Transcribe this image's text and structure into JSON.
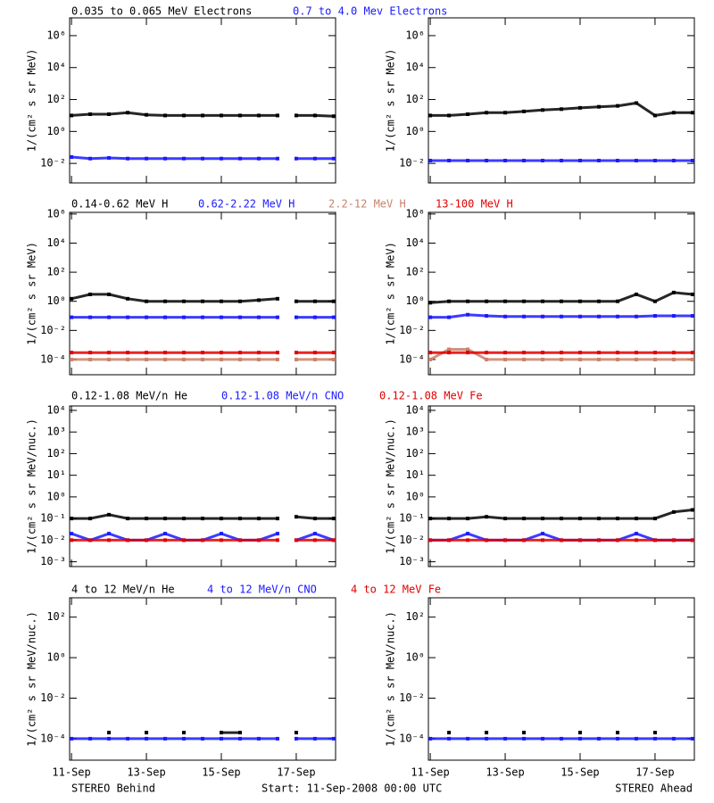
{
  "chart_data": [
    {
      "type": "scatter",
      "ylabel": "1/(cm² s sr MeV)",
      "ylog": true,
      "xlim": [
        10.95,
        18.05
      ],
      "xticks": [
        11,
        13,
        15,
        17
      ],
      "ylim": [
        0.0006,
        13000000
      ],
      "yticks": [
        {
          "value": 1000000,
          "label": "10⁶"
        },
        {
          "value": 10000,
          "label": "10⁴"
        },
        {
          "value": 100,
          "label": "10²"
        },
        {
          "value": 1,
          "label": "10⁰"
        },
        {
          "value": 0.01,
          "label": "10⁻²"
        }
      ],
      "x": [
        11,
        11.5,
        12,
        12.5,
        13,
        13.5,
        14,
        14.5,
        15,
        15.5,
        16,
        16.5,
        16.8,
        17,
        17.5,
        18
      ],
      "series": [
        {
          "name": "0.035 to 0.065 MeV Electrons",
          "color": "#000000",
          "values": [
            10,
            12,
            12,
            15,
            11,
            10,
            10,
            10,
            10,
            10,
            10,
            10,
            null,
            10,
            10,
            9
          ]
        },
        {
          "name": "0.7 to 4.0 Mev Electrons",
          "color": "#1a1aff",
          "values": [
            0.025,
            0.02,
            0.022,
            0.02,
            0.02,
            0.02,
            0.02,
            0.02,
            0.02,
            0.02,
            0.02,
            0.02,
            null,
            0.02,
            0.02,
            0.02
          ]
        }
      ]
    },
    {
      "type": "scatter",
      "ylabel": "1/(cm² s sr MeV)",
      "ylog": true,
      "xlim": [
        10.95,
        18.05
      ],
      "xticks": [
        11,
        13,
        15,
        17
      ],
      "ylim": [
        0.0006,
        13000000
      ],
      "yticks": [
        {
          "value": 1000000,
          "label": "10⁶"
        },
        {
          "value": 10000,
          "label": "10⁴"
        },
        {
          "value": 100,
          "label": "10²"
        },
        {
          "value": 1,
          "label": "10⁰"
        },
        {
          "value": 0.01,
          "label": "10⁻²"
        }
      ],
      "x": [
        11,
        11.5,
        12,
        12.5,
        13,
        13.5,
        14,
        14.5,
        15,
        15.5,
        16,
        16.5,
        17,
        17.5,
        18
      ],
      "series": [
        {
          "color": "#000000",
          "values": [
            10,
            10,
            12,
            15,
            15,
            18,
            22,
            25,
            30,
            35,
            40,
            60,
            10,
            15,
            15
          ]
        },
        {
          "color": "#1a1aff",
          "values": [
            0.015,
            0.015,
            0.015,
            0.015,
            0.015,
            0.015,
            0.015,
            0.015,
            0.015,
            0.015,
            0.015,
            0.015,
            0.015,
            0.015,
            0.015
          ]
        }
      ]
    },
    {
      "type": "scatter",
      "ylabel": "1/(cm² s sr MeV)",
      "ylog": true,
      "xlim": [
        10.95,
        18.05
      ],
      "xticks": [
        11,
        13,
        15,
        17
      ],
      "ylim": [
        9e-06,
        1300000
      ],
      "yticks": [
        {
          "value": 1000000,
          "label": "10⁶"
        },
        {
          "value": 10000,
          "label": "10⁴"
        },
        {
          "value": 100,
          "label": "10²"
        },
        {
          "value": 1,
          "label": "10⁰"
        },
        {
          "value": 0.01,
          "label": "10⁻²"
        },
        {
          "value": 0.0001,
          "label": "10⁻⁴"
        }
      ],
      "x": [
        11,
        11.5,
        12,
        12.5,
        13,
        13.5,
        14,
        14.5,
        15,
        15.5,
        16,
        16.5,
        16.8,
        17,
        17.5,
        18
      ],
      "series": [
        {
          "name": "0.14-0.62 MeV H",
          "color": "#000000",
          "values": [
            1.5,
            3,
            3,
            1.5,
            1,
            1,
            1,
            1,
            1,
            1,
            1.2,
            1.5,
            null,
            1,
            1,
            1
          ]
        },
        {
          "name": "0.62-2.22 MeV H",
          "color": "#1a1aff",
          "values": [
            0.08,
            0.08,
            0.08,
            0.08,
            0.08,
            0.08,
            0.08,
            0.08,
            0.08,
            0.08,
            0.08,
            0.08,
            null,
            0.08,
            0.08,
            0.08
          ]
        },
        {
          "name": "2.2-12 MeV H",
          "color": "#c8826a",
          "values": [
            0.0001,
            0.0001,
            0.0001,
            0.0001,
            0.0001,
            0.0001,
            0.0001,
            0.0001,
            0.0001,
            0.0001,
            0.0001,
            0.0001,
            null,
            0.0001,
            0.0001,
            0.0001
          ]
        },
        {
          "name": "13-100 MeV H",
          "color": "#e00000",
          "values": [
            0.0003,
            0.0003,
            0.0003,
            0.0003,
            0.0003,
            0.0003,
            0.0003,
            0.0003,
            0.0003,
            0.0003,
            0.0003,
            0.0003,
            null,
            0.0003,
            0.0003,
            0.0003
          ]
        }
      ]
    },
    {
      "type": "scatter",
      "ylabel": "1/(cm² s sr MeV)",
      "ylog": true,
      "xlim": [
        10.95,
        18.05
      ],
      "xticks": [
        11,
        13,
        15,
        17
      ],
      "ylim": [
        9e-06,
        1300000
      ],
      "yticks": [
        {
          "value": 1000000,
          "label": "10⁶"
        },
        {
          "value": 10000,
          "label": "10⁴"
        },
        {
          "value": 100,
          "label": "10²"
        },
        {
          "value": 1,
          "label": "10⁰"
        },
        {
          "value": 0.01,
          "label": "10⁻²"
        },
        {
          "value": 0.0001,
          "label": "10⁻⁴"
        }
      ],
      "x": [
        11,
        11.5,
        12,
        12.5,
        13,
        13.5,
        14,
        14.5,
        15,
        15.5,
        16,
        16.5,
        17,
        17.5,
        18
      ],
      "series": [
        {
          "color": "#000000",
          "values": [
            0.8,
            1,
            1,
            1,
            1,
            1,
            1,
            1,
            1,
            1,
            1,
            3,
            1,
            4,
            3
          ]
        },
        {
          "color": "#1a1aff",
          "values": [
            0.08,
            0.08,
            0.12,
            0.1,
            0.09,
            0.09,
            0.09,
            0.09,
            0.09,
            0.09,
            0.09,
            0.09,
            0.1,
            0.1,
            0.1
          ]
        },
        {
          "color": "#c8826a",
          "values": [
            0.0001,
            0.0005,
            0.0005,
            0.0001,
            0.0001,
            0.0001,
            0.0001,
            0.0001,
            0.0001,
            0.0001,
            0.0001,
            0.0001,
            0.0001,
            0.0001,
            0.0001
          ]
        },
        {
          "color": "#e00000",
          "values": [
            0.0003,
            0.0003,
            0.0003,
            0.0003,
            0.0003,
            0.0003,
            0.0003,
            0.0003,
            0.0003,
            0.0003,
            0.0003,
            0.0003,
            0.0003,
            0.0003,
            0.0003
          ]
        }
      ]
    },
    {
      "type": "scatter",
      "ylabel": "1/(cm² s sr MeV/nuc.)",
      "ylog": true,
      "xlim": [
        10.95,
        18.05
      ],
      "xticks": [
        11,
        13,
        15,
        17
      ],
      "ylim": [
        0.0006,
        16000
      ],
      "yticks": [
        {
          "value": 10000,
          "label": "10⁴"
        },
        {
          "value": 1000,
          "label": "10³"
        },
        {
          "value": 100,
          "label": "10²"
        },
        {
          "value": 10,
          "label": "10¹"
        },
        {
          "value": 1,
          "label": "10⁰"
        },
        {
          "value": 0.1,
          "label": "10⁻¹"
        },
        {
          "value": 0.01,
          "label": "10⁻²"
        },
        {
          "value": 0.001,
          "label": "10⁻³"
        }
      ],
      "x": [
        11,
        11.5,
        12,
        12.5,
        13,
        13.5,
        14,
        14.5,
        15,
        15.5,
        16,
        16.5,
        16.8,
        17,
        17.5,
        18
      ],
      "series": [
        {
          "name": "0.12-1.08 MeV/n He",
          "color": "#000000",
          "values": [
            0.1,
            0.1,
            0.15,
            0.1,
            0.1,
            0.1,
            0.1,
            0.1,
            0.1,
            0.1,
            0.1,
            0.1,
            null,
            0.12,
            0.1,
            0.1
          ]
        },
        {
          "name": "0.12-1.08 MeV/n CNO",
          "color": "#1a1aff",
          "values": [
            0.02,
            0.01,
            0.02,
            0.01,
            0.01,
            0.02,
            0.01,
            0.01,
            0.02,
            0.01,
            0.01,
            0.02,
            null,
            0.01,
            0.02,
            0.01
          ]
        },
        {
          "name": "0.12-1.08 MeV Fe",
          "color": "#e00000",
          "values": [
            0.01,
            0.01,
            0.01,
            0.01,
            0.01,
            0.01,
            0.01,
            0.01,
            0.01,
            0.01,
            0.01,
            0.01,
            null,
            0.01,
            0.01,
            0.01
          ]
        }
      ]
    },
    {
      "type": "scatter",
      "ylabel": "1/(cm² s sr MeV/nuc.)",
      "ylog": true,
      "xlim": [
        10.95,
        18.05
      ],
      "xticks": [
        11,
        13,
        15,
        17
      ],
      "ylim": [
        0.0006,
        16000
      ],
      "yticks": [
        {
          "value": 10000,
          "label": "10⁴"
        },
        {
          "value": 1000,
          "label": "10³"
        },
        {
          "value": 100,
          "label": "10²"
        },
        {
          "value": 10,
          "label": "10¹"
        },
        {
          "value": 1,
          "label": "10⁰"
        },
        {
          "value": 0.1,
          "label": "10⁻¹"
        },
        {
          "value": 0.01,
          "label": "10⁻²"
        },
        {
          "value": 0.001,
          "label": "10⁻³"
        }
      ],
      "x": [
        11,
        11.5,
        12,
        12.5,
        13,
        13.5,
        14,
        14.5,
        15,
        15.5,
        16,
        16.5,
        17,
        17.5,
        18
      ],
      "series": [
        {
          "color": "#000000",
          "values": [
            0.1,
            0.1,
            0.1,
            0.12,
            0.1,
            0.1,
            0.1,
            0.1,
            0.1,
            0.1,
            0.1,
            0.1,
            0.1,
            0.2,
            0.25
          ]
        },
        {
          "color": "#1a1aff",
          "values": [
            0.01,
            0.01,
            0.02,
            0.01,
            0.01,
            0.01,
            0.02,
            0.01,
            0.01,
            0.01,
            0.01,
            0.02,
            0.01,
            0.01,
            0.01
          ]
        },
        {
          "color": "#e00000",
          "values": [
            0.01,
            0.01,
            0.01,
            0.01,
            0.01,
            0.01,
            0.01,
            0.01,
            0.01,
            0.01,
            0.01,
            0.01,
            0.01,
            0.01,
            0.01
          ]
        }
      ]
    },
    {
      "type": "scatter",
      "ylabel": "1/(cm² s sr MeV/nuc.)",
      "ylog": true,
      "xlim": [
        10.95,
        18.05
      ],
      "xticks": [
        {
          "value": 11,
          "label": "11-Sep"
        },
        {
          "value": 13,
          "label": "13-Sep"
        },
        {
          "value": 15,
          "label": "15-Sep"
        },
        {
          "value": 17,
          "label": "17-Sep"
        }
      ],
      "ylim": [
        8.7e-06,
        900
      ],
      "yticks": [
        {
          "value": 100,
          "label": "10²"
        },
        {
          "value": 1,
          "label": "10⁰"
        },
        {
          "value": 0.01,
          "label": "10⁻²"
        },
        {
          "value": 0.0001,
          "label": "10⁻⁴"
        }
      ],
      "x": [
        11,
        11.5,
        12,
        12.5,
        13,
        13.5,
        14,
        14.5,
        15,
        15.5,
        16,
        16.5,
        16.8,
        17,
        17.5,
        18
      ],
      "series": [
        {
          "name": "4 to 12 MeV/n He",
          "color": "#000000",
          "values": [
            null,
            null,
            0.0002,
            null,
            0.0002,
            null,
            0.0002,
            null,
            0.0002,
            0.0002,
            null,
            null,
            null,
            0.0002,
            null,
            null
          ]
        },
        {
          "name": "4 to 12 MeV/n CNO",
          "color": "#1a1aff",
          "values": [
            0.0001,
            0.0001,
            0.0001,
            0.0001,
            0.0001,
            0.0001,
            0.0001,
            0.0001,
            0.0001,
            0.0001,
            0.0001,
            0.0001,
            null,
            0.0001,
            0.0001,
            0.0001
          ]
        },
        {
          "name": "4 to 12 MeV Fe",
          "color": "#e00000",
          "values": [
            null,
            null,
            null,
            null,
            null,
            null,
            null,
            null,
            null,
            null,
            null,
            null,
            null,
            null,
            null,
            null
          ]
        }
      ]
    },
    {
      "type": "scatter",
      "ylabel": "1/(cm² s sr MeV/nuc.)",
      "ylog": true,
      "xlim": [
        10.95,
        18.05
      ],
      "xticks": [
        {
          "value": 11,
          "label": "11-Sep"
        },
        {
          "value": 13,
          "label": "13-Sep"
        },
        {
          "value": 15,
          "label": "15-Sep"
        },
        {
          "value": 17,
          "label": "17-Sep"
        }
      ],
      "ylim": [
        8.7e-06,
        900
      ],
      "yticks": [
        {
          "value": 100,
          "label": "10²"
        },
        {
          "value": 1,
          "label": "10⁰"
        },
        {
          "value": 0.01,
          "label": "10⁻²"
        },
        {
          "value": 0.0001,
          "label": "10⁻⁴"
        }
      ],
      "x": [
        11,
        11.5,
        12,
        12.5,
        13,
        13.5,
        14,
        14.5,
        15,
        15.5,
        16,
        16.5,
        17,
        17.5,
        18
      ],
      "series": [
        {
          "color": "#000000",
          "values": [
            null,
            0.0002,
            null,
            0.0002,
            null,
            0.0002,
            null,
            null,
            0.0002,
            null,
            0.0002,
            null,
            0.0002,
            null,
            null
          ]
        },
        {
          "color": "#1a1aff",
          "values": [
            0.0001,
            0.0001,
            0.0001,
            0.0001,
            0.0001,
            0.0001,
            0.0001,
            0.0001,
            0.0001,
            0.0001,
            0.0001,
            0.0001,
            0.0001,
            0.0001,
            0.0001
          ]
        },
        {
          "color": "#e00000",
          "values": [
            null,
            null,
            null,
            null,
            null,
            null,
            null,
            null,
            null,
            null,
            null,
            null,
            null,
            null,
            null
          ]
        }
      ]
    }
  ],
  "footer": {
    "left": "STEREO Behind",
    "center": "Start: 11-Sep-2008 00:00 UTC",
    "right": "STEREO Ahead"
  }
}
